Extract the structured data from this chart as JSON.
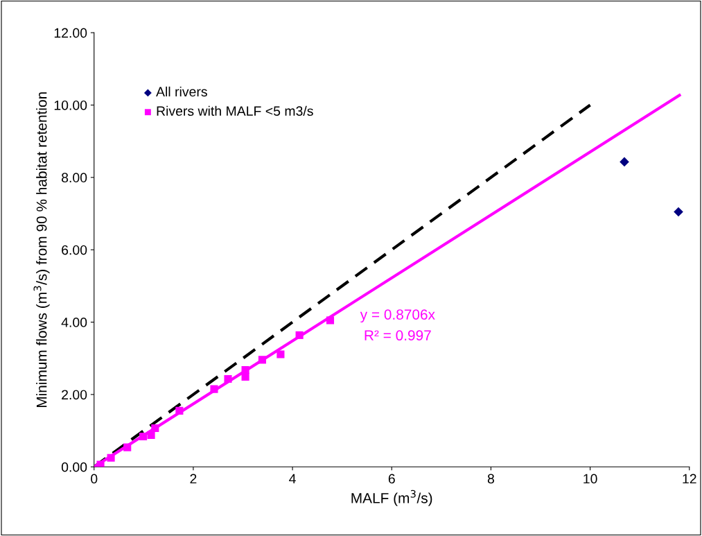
{
  "chart_data": {
    "type": "scatter",
    "xlabel": "MALF (m$^{3}$/s)",
    "ylabel": "Minimum flows (m$^{3}$/s) from 90 % habitat retention",
    "xlim": [
      0,
      12
    ],
    "xticks": [
      0,
      2,
      4,
      6,
      8,
      10,
      12
    ],
    "ylim": [
      0,
      12
    ],
    "yticks": [
      {
        "value": 0,
        "label": "0.00"
      },
      {
        "value": 2,
        "label": "2.00"
      },
      {
        "value": 4,
        "label": "4.00"
      },
      {
        "value": 6,
        "label": "6.00"
      },
      {
        "value": 8,
        "label": "8.00"
      },
      {
        "value": 10,
        "label": "10.00"
      },
      {
        "value": 12,
        "label": "12.00"
      }
    ],
    "grid": false,
    "legend": "top left",
    "annotations": [
      "y = 0.8706x",
      "R² = 0.997"
    ],
    "series": [
      {
        "name": "All rivers",
        "marker": "diamond",
        "color": "#000080",
        "x": [
          10.69,
          11.78
        ],
        "values": [
          8.43,
          7.05
        ]
      },
      {
        "name": "Rivers with MALF <5 m3/s",
        "marker": "square",
        "color": "#ff00ff",
        "x": [
          0.13,
          0.34,
          0.67,
          0.99,
          1.15,
          1.23,
          1.72,
          2.42,
          2.7,
          3.05,
          3.05,
          3.39,
          3.76,
          4.14,
          4.76
        ],
        "values": [
          0.06,
          0.25,
          0.54,
          0.84,
          0.88,
          1.07,
          1.55,
          2.15,
          2.43,
          2.68,
          2.49,
          2.96,
          3.11,
          3.64,
          4.05
        ]
      },
      {
        "type": "line",
        "marker": "none",
        "line_style": "solid",
        "color": "#ff00ff",
        "x": [
          0,
          11.8
        ],
        "values": [
          0,
          10.27
        ]
      },
      {
        "type": "line",
        "marker": "none",
        "line_style": "dashed",
        "color": "#000000",
        "x": [
          0,
          10
        ],
        "values": [
          0,
          10
        ]
      }
    ]
  }
}
